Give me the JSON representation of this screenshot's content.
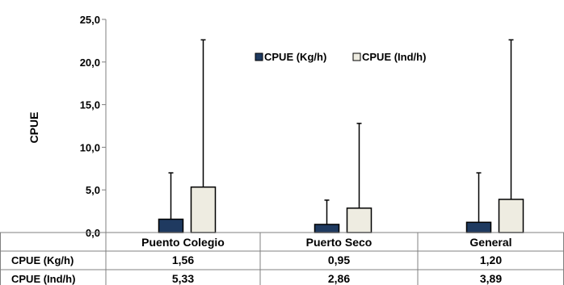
{
  "chart_data": {
    "type": "bar",
    "ylabel": "CPUE",
    "ylim": [
      0,
      25
    ],
    "y_ticks": [
      "0,0",
      "5,0",
      "10,0",
      "15,0",
      "20,0",
      "25,0"
    ],
    "categories": [
      "Puento Colegio",
      "Puerto Seco",
      "General"
    ],
    "series": [
      {
        "name": "CPUE (Kg/h)",
        "color": "#1f3a60",
        "values": [
          1.56,
          0.95,
          1.2
        ],
        "error_upper": [
          7.0,
          3.8,
          7.0
        ],
        "table_values": [
          "1,56",
          "0,95",
          "1,20"
        ]
      },
      {
        "name": "CPUE (Ind/h)",
        "color": "#eeece1",
        "values": [
          5.33,
          2.86,
          3.89
        ],
        "error_upper": [
          22.6,
          12.8,
          22.6
        ],
        "table_values": [
          "5,33",
          "2,86",
          "3,89"
        ]
      }
    ],
    "legend": "top-center",
    "grid": false
  }
}
